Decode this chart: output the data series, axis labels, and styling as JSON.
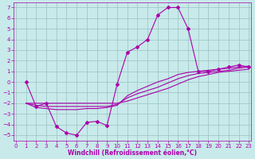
{
  "bg_color": "#c8eaea",
  "grid_color": "#a0c8c8",
  "line_color": "#aa00aa",
  "marker_color": "#aa00aa",
  "xlabel": "Windchill (Refroidissement éolien,°C)",
  "xlabel_color": "#aa00aa",
  "tick_color": "#aa00aa",
  "xlim": [
    -0.2,
    23.2
  ],
  "ylim": [
    -5.5,
    7.5
  ],
  "yticks": [
    -5,
    -4,
    -3,
    -2,
    -1,
    0,
    1,
    2,
    3,
    4,
    5,
    6,
    7
  ],
  "xticks": [
    0,
    1,
    2,
    3,
    4,
    5,
    6,
    7,
    8,
    9,
    10,
    11,
    12,
    13,
    14,
    15,
    16,
    17,
    18,
    19,
    20,
    21,
    22,
    23
  ],
  "series1_x": [
    1,
    2,
    3,
    4,
    5,
    6,
    7,
    8,
    9,
    10,
    11,
    12,
    13,
    14,
    15,
    16,
    17,
    18,
    19,
    20,
    21,
    22,
    23
  ],
  "series1_y": [
    0.0,
    -2.3,
    -2.0,
    -4.2,
    -4.8,
    -5.0,
    -3.8,
    -3.7,
    -4.1,
    -0.2,
    2.8,
    3.3,
    4.0,
    6.3,
    7.0,
    7.0,
    5.0,
    1.0,
    1.0,
    1.2,
    1.4,
    1.6,
    1.4
  ],
  "series2_x": [
    1,
    2,
    3,
    4,
    5,
    6,
    7,
    8,
    9,
    10,
    11,
    12,
    13,
    14,
    15,
    16,
    17,
    18,
    19,
    20,
    21,
    22,
    23
  ],
  "series2_y": [
    -2.0,
    -2.0,
    -2.0,
    -2.0,
    -2.0,
    -2.0,
    -2.0,
    -2.0,
    -2.0,
    -2.0,
    -1.8,
    -1.5,
    -1.2,
    -0.9,
    -0.6,
    -0.2,
    0.2,
    0.5,
    0.7,
    0.9,
    1.0,
    1.1,
    1.2
  ],
  "series3_x": [
    1,
    2,
    3,
    4,
    5,
    6,
    7,
    8,
    9,
    10,
    11,
    12,
    13,
    14,
    15,
    16,
    17,
    18,
    19,
    20,
    21,
    22,
    23
  ],
  "series3_y": [
    -2.0,
    -2.2,
    -2.3,
    -2.3,
    -2.3,
    -2.3,
    -2.3,
    -2.3,
    -2.3,
    -2.1,
    -1.5,
    -1.1,
    -0.8,
    -0.5,
    -0.1,
    0.3,
    0.6,
    0.8,
    0.9,
    1.0,
    1.1,
    1.3,
    1.4
  ],
  "series4_x": [
    1,
    2,
    3,
    4,
    5,
    6,
    7,
    8,
    9,
    10,
    11,
    12,
    13,
    14,
    15,
    16,
    17,
    18,
    19,
    20,
    21,
    22,
    23
  ],
  "series4_y": [
    -2.0,
    -2.4,
    -2.5,
    -2.6,
    -2.6,
    -2.6,
    -2.5,
    -2.5,
    -2.4,
    -2.2,
    -1.3,
    -0.8,
    -0.4,
    0.0,
    0.3,
    0.7,
    0.9,
    1.0,
    1.1,
    1.2,
    1.3,
    1.4,
    1.5
  ]
}
